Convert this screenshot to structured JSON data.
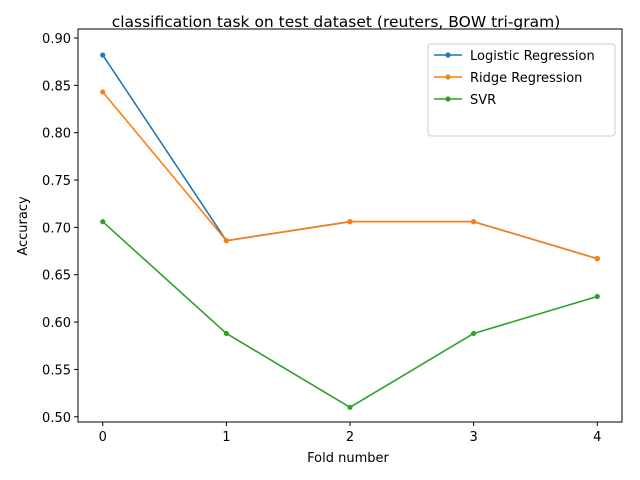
{
  "chart_data": {
    "type": "line",
    "title": "classification task on test dataset (reuters, BOW tri-gram)",
    "xlabel": "Fold number",
    "ylabel": "Accuracy",
    "x": [
      0,
      1,
      2,
      3,
      4
    ],
    "x_ticks": [
      "0",
      "1",
      "2",
      "3",
      "4"
    ],
    "y_ticks": [
      "0.50",
      "0.55",
      "0.60",
      "0.65",
      "0.70",
      "0.75",
      "0.80",
      "0.85",
      "0.90"
    ],
    "xlim": [
      -0.2,
      4.2
    ],
    "ylim": [
      0.4945,
      0.9095
    ],
    "grid": false,
    "legend_position": "upper-right",
    "series": [
      {
        "name": "Logistic Regression",
        "color": "#1f77b4",
        "values": [
          0.882,
          0.686,
          0.706,
          0.706,
          0.667
        ]
      },
      {
        "name": "Ridge Regression",
        "color": "#ff7f0e",
        "values": [
          0.843,
          0.686,
          0.706,
          0.706,
          0.667
        ]
      },
      {
        "name": "SVR",
        "color": "#2ca02c",
        "values": [
          0.706,
          0.588,
          0.51,
          0.588,
          0.627
        ]
      }
    ]
  }
}
